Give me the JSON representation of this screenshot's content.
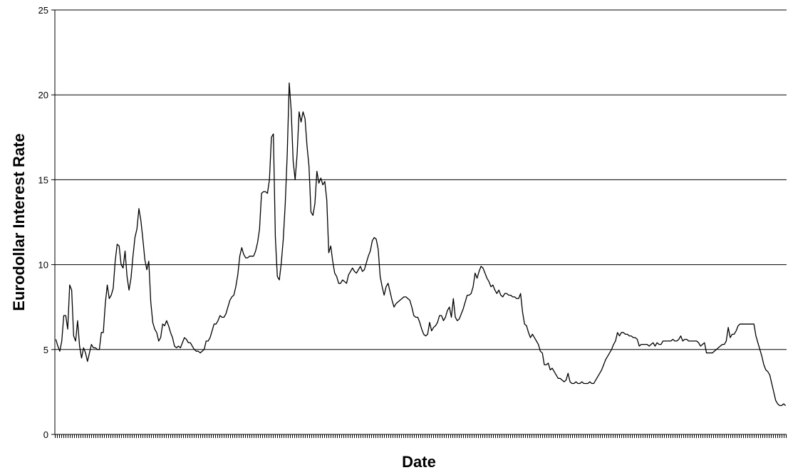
{
  "chart_data": {
    "type": "line",
    "xlabel": "Date",
    "ylabel": "Eurodollar Interest Rate",
    "ylim": [
      0,
      25
    ],
    "yticks": [
      0,
      5,
      10,
      15,
      20,
      25
    ],
    "grid": true,
    "legend": "none",
    "x_tick_labels_shown": false,
    "series": [
      {
        "color": "#000000",
        "values": [
          5.6,
          5.2,
          4.9,
          5.5,
          7.0,
          7.0,
          6.2,
          8.8,
          8.5,
          5.8,
          5.5,
          6.7,
          5.2,
          4.5,
          5.1,
          4.8,
          4.3,
          4.8,
          5.3,
          5.1,
          5.1,
          5.0,
          5.0,
          6.0,
          6.0,
          7.7,
          8.8,
          8.0,
          8.2,
          8.6,
          10.2,
          11.2,
          11.1,
          10.0,
          9.8,
          10.8,
          9.3,
          8.5,
          9.2,
          10.5,
          11.6,
          12.1,
          13.3,
          12.6,
          11.5,
          10.3,
          9.7,
          10.2,
          7.8,
          6.6,
          6.2,
          6.0,
          5.5,
          5.7,
          6.5,
          6.4,
          6.7,
          6.4,
          6.0,
          5.7,
          5.2,
          5.1,
          5.2,
          5.1,
          5.4,
          5.7,
          5.6,
          5.4,
          5.4,
          5.2,
          5.0,
          4.9,
          4.9,
          4.8,
          4.9,
          5.0,
          5.5,
          5.5,
          5.7,
          6.1,
          6.5,
          6.5,
          6.7,
          7.0,
          6.9,
          6.9,
          7.1,
          7.5,
          7.9,
          8.1,
          8.2,
          8.7,
          9.4,
          10.5,
          11.0,
          10.6,
          10.4,
          10.4,
          10.5,
          10.5,
          10.5,
          10.8,
          11.3,
          12.1,
          14.2,
          14.3,
          14.3,
          14.2,
          15.0,
          17.5,
          17.7,
          11.6,
          9.3,
          9.1,
          10.1,
          11.5,
          13.6,
          16.5,
          20.7,
          19.1,
          16.1,
          15.0,
          16.5,
          19.0,
          18.4,
          19.0,
          18.6,
          17.0,
          15.8,
          13.1,
          12.9,
          13.6,
          15.5,
          14.8,
          15.1,
          14.7,
          14.9,
          13.8,
          10.7,
          11.1,
          10.2,
          9.5,
          9.3,
          8.9,
          8.9,
          9.1,
          9.0,
          8.9,
          9.4,
          9.6,
          9.8,
          9.6,
          9.5,
          9.7,
          9.9,
          9.6,
          9.7,
          10.1,
          10.5,
          10.8,
          11.4,
          11.6,
          11.5,
          10.9,
          9.3,
          8.7,
          8.2,
          8.7,
          8.9,
          8.4,
          7.9,
          7.5,
          7.7,
          7.8,
          7.9,
          8.0,
          8.1,
          8.1,
          8.0,
          7.9,
          7.5,
          7.0,
          6.9,
          6.9,
          6.6,
          6.2,
          5.9,
          5.8,
          5.9,
          6.6,
          6.1,
          6.3,
          6.4,
          6.6,
          7.0,
          7.0,
          6.7,
          6.9,
          7.3,
          7.5,
          6.9,
          8.0,
          6.9,
          6.7,
          6.8,
          7.1,
          7.4,
          7.8,
          8.2,
          8.2,
          8.3,
          8.7,
          9.5,
          9.2,
          9.6,
          9.9,
          9.8,
          9.5,
          9.2,
          9.0,
          8.7,
          8.8,
          8.5,
          8.3,
          8.5,
          8.2,
          8.1,
          8.3,
          8.3,
          8.2,
          8.2,
          8.1,
          8.1,
          8.0,
          8.0,
          8.3,
          7.2,
          6.5,
          6.4,
          6.0,
          5.7,
          5.9,
          5.7,
          5.5,
          5.3,
          4.9,
          4.8,
          4.1,
          4.1,
          4.2,
          3.8,
          3.9,
          3.7,
          3.5,
          3.3,
          3.3,
          3.2,
          3.1,
          3.2,
          3.6,
          3.1,
          3.0,
          3.0,
          3.1,
          3.0,
          3.0,
          3.1,
          3.0,
          3.0,
          3.0,
          3.1,
          3.0,
          3.0,
          3.2,
          3.4,
          3.6,
          3.8,
          4.1,
          4.4,
          4.6,
          4.8,
          5.0,
          5.3,
          5.5,
          6.0,
          5.8,
          6.0,
          6.0,
          5.9,
          5.9,
          5.8,
          5.8,
          5.7,
          5.7,
          5.6,
          5.2,
          5.3,
          5.3,
          5.3,
          5.3,
          5.2,
          5.3,
          5.4,
          5.2,
          5.4,
          5.3,
          5.3,
          5.5,
          5.5,
          5.5,
          5.5,
          5.5,
          5.6,
          5.5,
          5.5,
          5.6,
          5.8,
          5.5,
          5.6,
          5.6,
          5.5,
          5.5,
          5.5,
          5.5,
          5.5,
          5.4,
          5.2,
          5.3,
          5.4,
          4.8,
          4.8,
          4.8,
          4.8,
          4.9,
          5.0,
          5.1,
          5.2,
          5.3,
          5.3,
          5.5,
          6.3,
          5.7,
          5.9,
          5.9,
          6.1,
          6.4,
          6.5,
          6.5,
          6.5,
          6.5,
          6.5,
          6.5,
          6.5,
          6.5,
          5.8,
          5.4,
          5.0,
          4.6,
          4.1,
          3.8,
          3.7,
          3.5,
          3.0,
          2.5,
          2.0,
          1.8,
          1.7,
          1.7,
          1.8,
          1.7
        ]
      }
    ]
  }
}
